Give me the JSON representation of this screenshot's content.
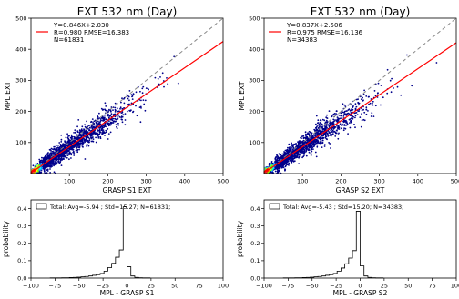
{
  "chart_data": [
    {
      "type": "scatter",
      "title": "EXT 532 nm (Day)",
      "xlabel": "GRASP S1 EXT",
      "ylabel": "MPL EXT",
      "xlim": [
        0,
        500
      ],
      "ylim": [
        0,
        500
      ],
      "xticks": [
        "100",
        "200",
        "300",
        "400",
        "500"
      ],
      "yticks": [
        "100",
        "200",
        "300",
        "400",
        "500"
      ],
      "annotations": [
        "Y=0.846X+2.030",
        "R=0.980  RMSE=16.383",
        "N=61831"
      ],
      "fit": {
        "slope": 0.846,
        "intercept": 2.03
      },
      "one_to_one_line": true,
      "colormap": "jet density",
      "colors": {
        "points": "#00008b",
        "fit_line": "#ff0000",
        "one_to_one": "#888888"
      }
    },
    {
      "type": "scatter",
      "title": "EXT 532 nm (Day)",
      "xlabel": "GRASP S2 EXT",
      "ylabel": "MPL EXT",
      "xlim": [
        0,
        500
      ],
      "ylim": [
        0,
        500
      ],
      "xticks": [
        "100",
        "200",
        "300",
        "400",
        "500"
      ],
      "yticks": [
        "100",
        "200",
        "300",
        "400",
        "500"
      ],
      "annotations": [
        "Y=0.837X+2.506",
        "R=0.975  RMSE=16.136",
        "N=34383"
      ],
      "fit": {
        "slope": 0.837,
        "intercept": 2.506
      },
      "one_to_one_line": true,
      "colormap": "jet density",
      "colors": {
        "points": "#00008b",
        "fit_line": "#ff0000",
        "one_to_one": "#888888"
      }
    },
    {
      "type": "bar",
      "xlabel": "MPL - GRASP S1",
      "ylabel": "probability",
      "xlim": [
        -100,
        100
      ],
      "ylim": [
        0,
        0.45
      ],
      "xticks": [
        "−100",
        "−75",
        "−50",
        "−25",
        "0",
        "25",
        "50",
        "75",
        "100"
      ],
      "yticks": [
        "0.0",
        "0.1",
        "0.2",
        "0.3",
        "0.4"
      ],
      "legend": "Total: Avg=-5.94 ; Std=15.27; N=61831;",
      "bin_width": 4,
      "bin_starts": [
        -80,
        -76,
        -72,
        -68,
        -64,
        -60,
        -56,
        -52,
        -48,
        -44,
        -40,
        -36,
        -32,
        -28,
        -24,
        -20,
        -16,
        -12,
        -8,
        -4,
        0,
        4,
        8,
        12,
        16,
        20
      ],
      "values": [
        0.001,
        0.001,
        0.001,
        0.002,
        0.002,
        0.003,
        0.004,
        0.005,
        0.007,
        0.009,
        0.012,
        0.016,
        0.02,
        0.027,
        0.04,
        0.06,
        0.085,
        0.12,
        0.162,
        0.41,
        0.065,
        0.012,
        0.004,
        0.002,
        0.001,
        0.001
      ]
    },
    {
      "type": "bar",
      "xlabel": "MPL - GRASP S2",
      "ylabel": "probability",
      "xlim": [
        -100,
        100
      ],
      "ylim": [
        0,
        0.45
      ],
      "xticks": [
        "−100",
        "−75",
        "−50",
        "−25",
        "0",
        "25",
        "50",
        "75",
        "100"
      ],
      "yticks": [
        "0.0",
        "0.1",
        "0.2",
        "0.3",
        "0.4"
      ],
      "legend": "Total: Avg=-5.43 ; Std=15.20; N=34383;",
      "bin_width": 4,
      "bin_starts": [
        -80,
        -76,
        -72,
        -68,
        -64,
        -60,
        -56,
        -52,
        -48,
        -44,
        -40,
        -36,
        -32,
        -28,
        -24,
        -20,
        -16,
        -12,
        -8,
        -4,
        0,
        4,
        8,
        12,
        16,
        20
      ],
      "values": [
        0.001,
        0.001,
        0.001,
        0.002,
        0.002,
        0.003,
        0.004,
        0.005,
        0.007,
        0.009,
        0.012,
        0.016,
        0.02,
        0.027,
        0.04,
        0.058,
        0.082,
        0.115,
        0.158,
        0.385,
        0.07,
        0.012,
        0.004,
        0.002,
        0.001,
        0.001
      ]
    }
  ]
}
